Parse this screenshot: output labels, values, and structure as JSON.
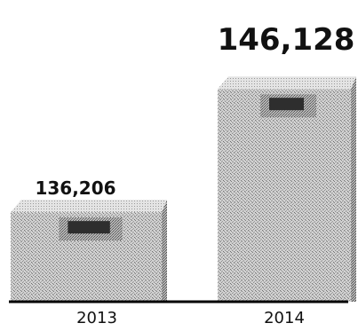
{
  "chart_data": {
    "type": "bar",
    "categories": [
      "2013",
      "2014"
    ],
    "values": [
      136206,
      146128
    ],
    "data_labels": [
      "136,206",
      "146,128"
    ],
    "title": "",
    "xlabel": "",
    "ylabel": "",
    "grid": false,
    "legend": "none",
    "colors": {
      "bar": "#c9c9c9",
      "bar_dark": "#9a9a9a",
      "screen": "#2e2e2e",
      "axis": "#000000"
    }
  }
}
